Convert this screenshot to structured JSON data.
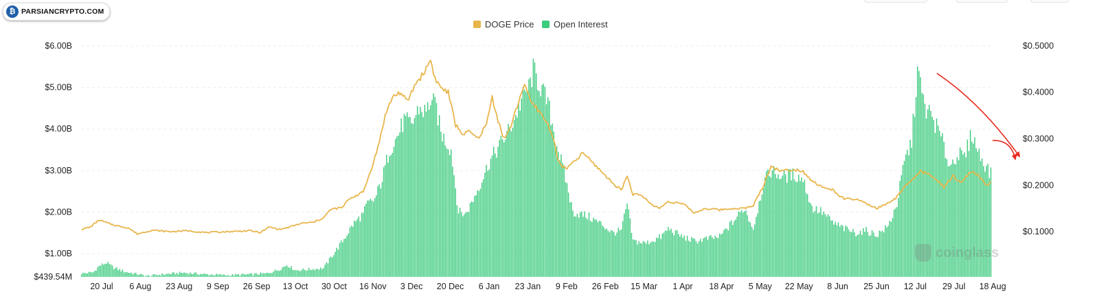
{
  "logo": {
    "text": "PARSIANCRYPTO.COM",
    "icon": "bitcoin-person-icon"
  },
  "watermark": {
    "text": "coinglass",
    "icon": "coinglass-icon"
  },
  "colors": {
    "price": "#E8B54A",
    "open_interest": "#3DCB7E",
    "arrow": "#E82A1E",
    "grid": "#EDEDED"
  },
  "chart_data": {
    "type": "bar+line",
    "title": "",
    "legend": {
      "placement": "top-center",
      "entries": [
        "DOGE Price",
        "Open Interest"
      ]
    },
    "grid": true,
    "x_tick_labels": [
      "20 Jul",
      "6 Aug",
      "23 Aug",
      "9 Sep",
      "26 Sep",
      "13 Oct",
      "30 Oct",
      "16 Nov",
      "3 Dec",
      "20 Dec",
      "6 Jan",
      "23 Jan",
      "9 Feb",
      "26 Feb",
      "15 Mar",
      "1 Apr",
      "18 Apr",
      "5 May",
      "22 May",
      "8 Jun",
      "25 Jun",
      "12 Jul",
      "29 Jul",
      "18 Aug"
    ],
    "y_left": {
      "label": "",
      "ticks": [
        "$6.00B",
        "$5.00B",
        "$4.00B",
        "$3.00B",
        "$2.00B",
        "$1.00B",
        "$439.54M"
      ],
      "tick_values": [
        6.0,
        5.0,
        4.0,
        3.0,
        2.0,
        1.0,
        0.43954
      ],
      "min": 0.43954,
      "max": 6.0,
      "unit": "B USD"
    },
    "y_right": {
      "label": "",
      "ticks": [
        "$0.5000",
        "$0.4000",
        "$0.3000",
        "$0.2000",
        "$0.1000"
      ],
      "tick_values": [
        0.5,
        0.4,
        0.3,
        0.2,
        0.1
      ],
      "min": 0.0,
      "max": 0.5,
      "unit": "USD"
    },
    "series": [
      {
        "name": "Open Interest",
        "type": "bar",
        "axis": "left",
        "keypoints": [
          [
            0,
            0.52
          ],
          [
            8,
            0.55
          ],
          [
            12,
            0.7
          ],
          [
            17,
            0.78
          ],
          [
            22,
            0.66
          ],
          [
            30,
            0.56
          ],
          [
            45,
            0.46
          ],
          [
            55,
            0.5
          ],
          [
            70,
            0.54
          ],
          [
            85,
            0.5
          ],
          [
            100,
            0.48
          ],
          [
            115,
            0.5
          ],
          [
            126,
            0.52
          ],
          [
            135,
            0.62
          ],
          [
            140,
            0.73
          ],
          [
            146,
            0.6
          ],
          [
            155,
            0.62
          ],
          [
            165,
            0.65
          ],
          [
            170,
            0.9
          ],
          [
            178,
            1.3
          ],
          [
            185,
            1.7
          ],
          [
            192,
            1.95
          ],
          [
            195,
            2.2
          ],
          [
            200,
            2.3
          ],
          [
            205,
            2.8
          ],
          [
            210,
            3.5
          ],
          [
            215,
            3.8
          ],
          [
            220,
            4.2
          ],
          [
            225,
            4.1
          ],
          [
            230,
            4.5
          ],
          [
            235,
            4.4
          ],
          [
            238,
            4.7
          ],
          [
            242,
            4.5
          ],
          [
            245,
            3.9
          ],
          [
            252,
            3.5
          ],
          [
            257,
            2.0
          ],
          [
            262,
            1.95
          ],
          [
            267,
            2.3
          ],
          [
            272,
            2.7
          ],
          [
            278,
            3.2
          ],
          [
            285,
            3.6
          ],
          [
            292,
            4.0
          ],
          [
            297,
            4.4
          ],
          [
            300,
            4.7
          ],
          [
            305,
            5.0
          ],
          [
            308,
            5.4
          ],
          [
            312,
            5.1
          ],
          [
            318,
            4.6
          ],
          [
            325,
            3.5
          ],
          [
            330,
            2.8
          ],
          [
            335,
            2.0
          ],
          [
            345,
            1.9
          ],
          [
            355,
            1.7
          ],
          [
            362,
            1.5
          ],
          [
            368,
            1.55
          ],
          [
            372,
            2.2
          ],
          [
            376,
            1.3
          ],
          [
            385,
            1.25
          ],
          [
            395,
            1.4
          ],
          [
            400,
            1.6
          ],
          [
            410,
            1.4
          ],
          [
            418,
            1.3
          ],
          [
            425,
            1.35
          ],
          [
            435,
            1.4
          ],
          [
            445,
            1.8
          ],
          [
            452,
            2.1
          ],
          [
            458,
            1.6
          ],
          [
            465,
            2.7
          ],
          [
            470,
            3.0
          ],
          [
            478,
            2.85
          ],
          [
            485,
            2.9
          ],
          [
            492,
            2.8
          ],
          [
            498,
            2.1
          ],
          [
            505,
            2.0
          ],
          [
            512,
            1.75
          ],
          [
            520,
            1.6
          ],
          [
            528,
            1.5
          ],
          [
            535,
            1.55
          ],
          [
            542,
            1.45
          ],
          [
            550,
            1.65
          ],
          [
            556,
            2.2
          ],
          [
            561,
            3.2
          ],
          [
            566,
            3.7
          ],
          [
            570,
            5.4
          ],
          [
            575,
            4.5
          ],
          [
            580,
            4.3
          ],
          [
            586,
            3.8
          ],
          [
            592,
            3.1
          ],
          [
            597,
            3.4
          ],
          [
            602,
            3.3
          ],
          [
            607,
            3.9
          ],
          [
            612,
            3.4
          ],
          [
            617,
            3.1
          ],
          [
            620,
            2.9
          ]
        ]
      },
      {
        "name": "DOGE Price",
        "type": "line",
        "axis": "right",
        "keypoints": [
          [
            0,
            0.105
          ],
          [
            6,
            0.11
          ],
          [
            12,
            0.125
          ],
          [
            18,
            0.118
          ],
          [
            25,
            0.112
          ],
          [
            32,
            0.108
          ],
          [
            38,
            0.095
          ],
          [
            48,
            0.103
          ],
          [
            60,
            0.1
          ],
          [
            72,
            0.102
          ],
          [
            85,
            0.098
          ],
          [
            100,
            0.1
          ],
          [
            115,
            0.102
          ],
          [
            122,
            0.098
          ],
          [
            128,
            0.11
          ],
          [
            135,
            0.105
          ],
          [
            140,
            0.108
          ],
          [
            150,
            0.118
          ],
          [
            158,
            0.12
          ],
          [
            165,
            0.13
          ],
          [
            170,
            0.148
          ],
          [
            178,
            0.152
          ],
          [
            182,
            0.17
          ],
          [
            186,
            0.176
          ],
          [
            192,
            0.185
          ],
          [
            197,
            0.23
          ],
          [
            202,
            0.28
          ],
          [
            207,
            0.35
          ],
          [
            212,
            0.39
          ],
          [
            217,
            0.4
          ],
          [
            222,
            0.38
          ],
          [
            228,
            0.42
          ],
          [
            233,
            0.44
          ],
          [
            238,
            0.47
          ],
          [
            241,
            0.43
          ],
          [
            245,
            0.41
          ],
          [
            250,
            0.4
          ],
          [
            255,
            0.33
          ],
          [
            260,
            0.31
          ],
          [
            265,
            0.315
          ],
          [
            270,
            0.3
          ],
          [
            276,
            0.33
          ],
          [
            280,
            0.39
          ],
          [
            284,
            0.34
          ],
          [
            288,
            0.3
          ],
          [
            292,
            0.32
          ],
          [
            298,
            0.38
          ],
          [
            302,
            0.42
          ],
          [
            306,
            0.38
          ],
          [
            312,
            0.36
          ],
          [
            318,
            0.33
          ],
          [
            322,
            0.3
          ],
          [
            325,
            0.25
          ],
          [
            330,
            0.235
          ],
          [
            336,
            0.25
          ],
          [
            342,
            0.27
          ],
          [
            348,
            0.25
          ],
          [
            355,
            0.228
          ],
          [
            362,
            0.205
          ],
          [
            368,
            0.19
          ],
          [
            372,
            0.22
          ],
          [
            376,
            0.18
          ],
          [
            382,
            0.178
          ],
          [
            388,
            0.16
          ],
          [
            394,
            0.15
          ],
          [
            400,
            0.165
          ],
          [
            410,
            0.16
          ],
          [
            418,
            0.14
          ],
          [
            425,
            0.15
          ],
          [
            435,
            0.147
          ],
          [
            445,
            0.15
          ],
          [
            452,
            0.15
          ],
          [
            458,
            0.156
          ],
          [
            465,
            0.2
          ],
          [
            470,
            0.24
          ],
          [
            478,
            0.23
          ],
          [
            485,
            0.235
          ],
          [
            492,
            0.23
          ],
          [
            498,
            0.21
          ],
          [
            505,
            0.195
          ],
          [
            512,
            0.19
          ],
          [
            520,
            0.17
          ],
          [
            528,
            0.17
          ],
          [
            535,
            0.16
          ],
          [
            542,
            0.15
          ],
          [
            550,
            0.16
          ],
          [
            556,
            0.175
          ],
          [
            561,
            0.195
          ],
          [
            566,
            0.21
          ],
          [
            572,
            0.23
          ],
          [
            580,
            0.22
          ],
          [
            588,
            0.195
          ],
          [
            594,
            0.22
          ],
          [
            600,
            0.205
          ],
          [
            606,
            0.23
          ],
          [
            612,
            0.22
          ],
          [
            617,
            0.2
          ],
          [
            620,
            0.205
          ]
        ]
      }
    ]
  }
}
